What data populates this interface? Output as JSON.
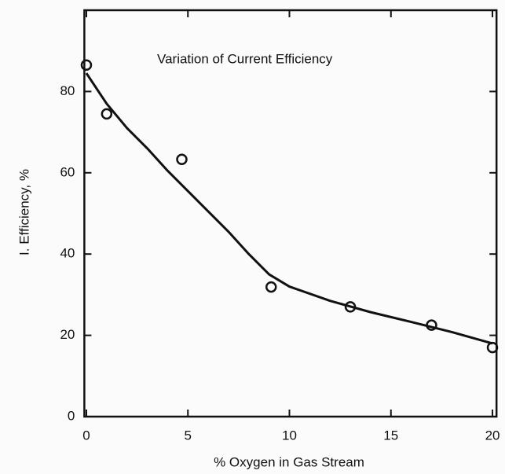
{
  "chart_data": {
    "type": "scatter",
    "title": "Variation of Current Efficiency",
    "xlabel": "% Oxygen in Gas Stream",
    "ylabel": "I. Efficiency, %",
    "xlim": [
      -0.1,
      20.2
    ],
    "ylim": [
      0,
      100
    ],
    "xticks": [
      0,
      5,
      10,
      15,
      20
    ],
    "yticks": [
      0,
      20,
      40,
      60,
      80
    ],
    "color": "#111111",
    "series": [
      {
        "type": "scatter",
        "marker": "open-circle",
        "color": "#111111",
        "x": [
          0,
          1,
          4.7,
          9.1,
          13,
          17,
          20
        ],
        "values": [
          86.5,
          74.5,
          63.3,
          31.9,
          27,
          22.5,
          17
        ]
      },
      {
        "type": "line",
        "color": "#111111",
        "x": [
          0,
          1,
          2,
          3,
          4,
          5,
          6,
          7,
          8,
          9,
          10,
          12,
          14,
          16,
          18,
          20
        ],
        "values": [
          84.5,
          77,
          71,
          66,
          60.5,
          55.5,
          50.5,
          45.5,
          40,
          35,
          32,
          28.5,
          25.7,
          23.3,
          20.8,
          18
        ]
      }
    ]
  }
}
